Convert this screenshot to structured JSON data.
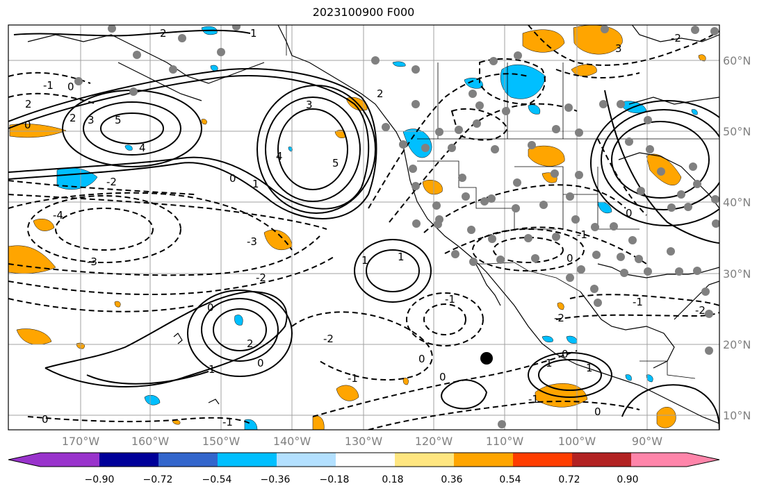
{
  "title": "2023100900 F000",
  "lon_labels": [
    "170°W",
    "160°W",
    "150°W",
    "140°W",
    "130°W",
    "120°W",
    "110°W",
    "100°W",
    "90°W"
  ],
  "lat_labels": [
    "60°N",
    "50°N",
    "40°N",
    "30°N",
    "20°N",
    "10°N"
  ],
  "colorbar": {
    "tick_labels": [
      "−0.90",
      "−0.72",
      "−0.54",
      "−0.36",
      "−0.18",
      "0.18",
      "0.36",
      "0.54",
      "0.72",
      "0.90"
    ],
    "colors": [
      "#9933cc",
      "#000099",
      "#3366cc",
      "#00bfff",
      "#b3e0ff",
      "#ffffff",
      "#ffe680",
      "#ffa500",
      "#ff3d00",
      "#b22222",
      "#ff85aa"
    ]
  },
  "contour_labels": [
    "5",
    "4",
    "3",
    "2",
    "1",
    "0",
    "-1",
    "-2",
    "-3",
    "-4"
  ],
  "fill_colors": {
    "positive": "#ffa500",
    "negative": "#00bfff",
    "station": "#808080"
  }
}
